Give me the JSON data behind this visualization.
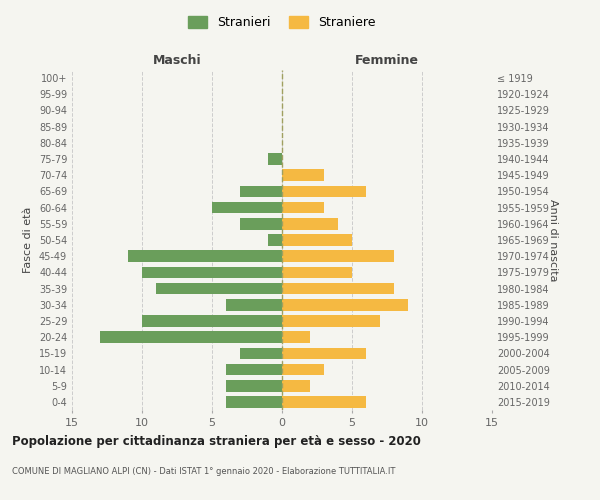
{
  "age_groups": [
    "0-4",
    "5-9",
    "10-14",
    "15-19",
    "20-24",
    "25-29",
    "30-34",
    "35-39",
    "40-44",
    "45-49",
    "50-54",
    "55-59",
    "60-64",
    "65-69",
    "70-74",
    "75-79",
    "80-84",
    "85-89",
    "90-94",
    "95-99",
    "100+"
  ],
  "birth_years": [
    "2015-2019",
    "2010-2014",
    "2005-2009",
    "2000-2004",
    "1995-1999",
    "1990-1994",
    "1985-1989",
    "1980-1984",
    "1975-1979",
    "1970-1974",
    "1965-1969",
    "1960-1964",
    "1955-1959",
    "1950-1954",
    "1945-1949",
    "1940-1944",
    "1935-1939",
    "1930-1934",
    "1925-1929",
    "1920-1924",
    "≤ 1919"
  ],
  "maschi": [
    4,
    4,
    4,
    3,
    13,
    10,
    4,
    9,
    10,
    11,
    1,
    3,
    5,
    3,
    0,
    1,
    0,
    0,
    0,
    0,
    0
  ],
  "femmine": [
    6,
    2,
    3,
    6,
    2,
    7,
    9,
    8,
    5,
    8,
    5,
    4,
    3,
    6,
    3,
    0,
    0,
    0,
    0,
    0,
    0
  ],
  "maschi_color": "#6a9e5b",
  "femmine_color": "#f5b942",
  "background_color": "#f5f5f0",
  "grid_color": "#cccccc",
  "title": "Popolazione per cittadinanza straniera per età e sesso - 2020",
  "subtitle": "COMUNE DI MAGLIANO ALPI (CN) - Dati ISTAT 1° gennaio 2020 - Elaborazione TUTTITALIA.IT",
  "xlabel_left": "Maschi",
  "xlabel_right": "Femmine",
  "ylabel_left": "Fasce di età",
  "ylabel_right": "Anni di nascita",
  "legend_stranieri": "Stranieri",
  "legend_straniere": "Straniere",
  "xlim": 15
}
